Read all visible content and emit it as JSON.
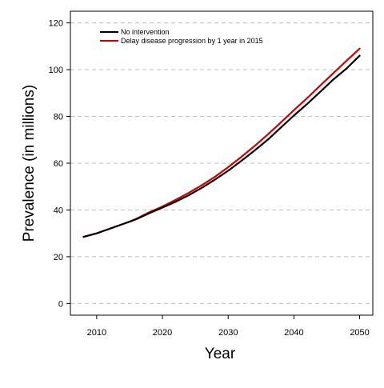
{
  "chart_data": {
    "type": "line",
    "title": "",
    "xlabel": "Year",
    "ylabel": "Prevalence (in millions)",
    "xlim": [
      2006,
      2052
    ],
    "ylim": [
      -5,
      125
    ],
    "xticks": [
      2010,
      2020,
      2030,
      2040,
      2050
    ],
    "yticks": [
      0,
      20,
      40,
      60,
      80,
      100,
      120
    ],
    "grid": "horizontal dashed",
    "legend": "top-left",
    "series": [
      {
        "name": "No intervention",
        "color": "#000000",
        "x": [
          2008,
          2010,
          2012,
          2014,
          2016,
          2018,
          2020,
          2022,
          2024,
          2026,
          2028,
          2030,
          2032,
          2034,
          2036,
          2038,
          2040,
          2042,
          2044,
          2046,
          2048,
          2050
        ],
        "y": [
          28.5,
          30.0,
          32.0,
          34.0,
          36.0,
          38.6,
          41.0,
          43.5,
          46.3,
          49.5,
          53.0,
          56.8,
          61.0,
          65.4,
          70.0,
          75.2,
          80.4,
          85.3,
          90.5,
          95.8,
          100.5,
          106.0
        ]
      },
      {
        "name": "Delay disease progression by 1 year in 2015",
        "color": "#cc0000",
        "x": [
          2008,
          2010,
          2012,
          2014,
          2015,
          2016,
          2018,
          2020,
          2022,
          2024,
          2026,
          2028,
          2030,
          2032,
          2034,
          2036,
          2038,
          2040,
          2042,
          2044,
          2046,
          2048,
          2050
        ],
        "y": [
          28.5,
          30.0,
          32.0,
          34.0,
          35.0,
          36.2,
          39.0,
          41.5,
          44.3,
          47.3,
          50.6,
          54.2,
          58.3,
          62.7,
          67.3,
          72.2,
          77.4,
          82.7,
          87.8,
          93.2,
          98.5,
          103.8,
          109.0
        ]
      }
    ]
  }
}
